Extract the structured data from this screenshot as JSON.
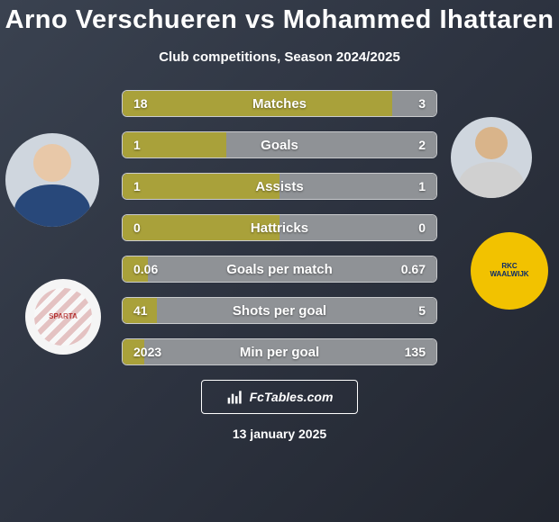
{
  "title": "Arno Verschueren vs Mohammed Ihattaren",
  "subtitle": "Club competitions, Season 2024/2025",
  "date_text": "13 january 2025",
  "footer_brand": "FcTables.com",
  "colors": {
    "left_bar": "#a9a13a",
    "right_bar": "#8f9296",
    "bar_border": "#ffffff",
    "bg_from": "#3a4250",
    "bg_to": "#22262f"
  },
  "player_left": {
    "name": "Arno Verschueren",
    "club": "Sparta Rotterdam"
  },
  "player_right": {
    "name": "Mohammed Ihattaren",
    "club": "RKC Waalwijk"
  },
  "rows": [
    {
      "label": "Matches",
      "left": "18",
      "right": "3",
      "left_pct": 86,
      "right_pct": 14
    },
    {
      "label": "Goals",
      "left": "1",
      "right": "2",
      "left_pct": 33,
      "right_pct": 67
    },
    {
      "label": "Assists",
      "left": "1",
      "right": "1",
      "left_pct": 50,
      "right_pct": 50
    },
    {
      "label": "Hattricks",
      "left": "0",
      "right": "0",
      "left_pct": 50,
      "right_pct": 50
    },
    {
      "label": "Goals per match",
      "left": "0.06",
      "right": "0.67",
      "left_pct": 8,
      "right_pct": 92
    },
    {
      "label": "Shots per goal",
      "left": "41",
      "right": "5",
      "left_pct": 11,
      "right_pct": 89
    },
    {
      "label": "Min per goal",
      "left": "2023",
      "right": "135",
      "left_pct": 7,
      "right_pct": 93
    }
  ]
}
